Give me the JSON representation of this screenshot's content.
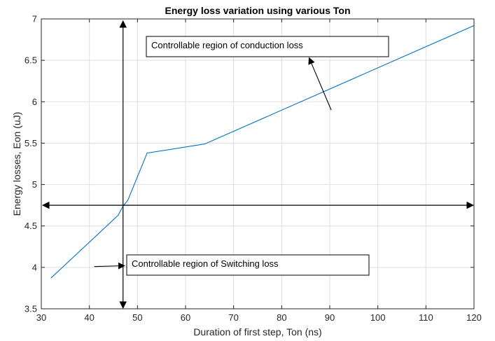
{
  "chart_data": {
    "type": "line",
    "title": "Energy loss variation using various Ton",
    "xlabel": "Duration of first step, Ton (ns)",
    "ylabel": "Energy losses, Eon (uJ)",
    "xlim": [
      30,
      120
    ],
    "ylim": [
      3.5,
      7
    ],
    "xticks": [
      30,
      40,
      50,
      60,
      70,
      80,
      90,
      100,
      110,
      120
    ],
    "yticks": [
      3.5,
      4,
      4.5,
      5,
      5.5,
      6,
      6.5,
      7
    ],
    "xtick_labels": [
      "30",
      "40",
      "50",
      "60",
      "70",
      "80",
      "90",
      "100",
      "110",
      "120"
    ],
    "ytick_labels": [
      "3.5",
      "4",
      "4.5",
      "5",
      "5.5",
      "6",
      "6.5",
      "7"
    ],
    "grid": true,
    "series": [
      {
        "color": "#0072bd",
        "x": [
          32,
          46,
          47,
          48,
          52,
          64,
          120
        ],
        "y": [
          3.87,
          4.63,
          4.74,
          4.81,
          5.38,
          5.49,
          6.92
        ]
      }
    ],
    "annotations": [
      {
        "text": "Controllable region of conduction loss",
        "arrow_from": [
          90.3,
          5.9
        ],
        "arrow_to": [
          85.7,
          6.53
        ]
      },
      {
        "text": "Controllable region of Switching loss",
        "arrow_from": [
          41,
          4.01
        ],
        "arrow_to": [
          47.3,
          4.02
        ]
      }
    ],
    "reference_lines": {
      "vertical_x": 47,
      "horizontal_y": 4.75
    }
  }
}
